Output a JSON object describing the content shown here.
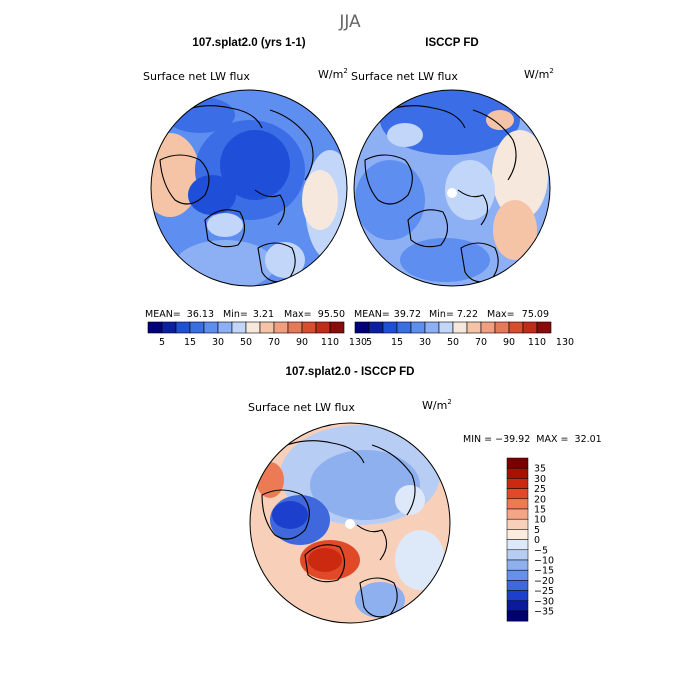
{
  "chart_data": {
    "type": "polar-contour-map",
    "title": "JJA",
    "panels": [
      {
        "id": "model",
        "title": "107.splat2.0 (yrs 1-1)",
        "field_label": "Surface net LW flux",
        "units_base": "W/m",
        "units_exp": "2",
        "stats": {
          "mean_label": "MEAN=",
          "mean": "36.13",
          "min_label": "Min=",
          "min": "3.21",
          "max_label": "Max=",
          "max": "95.50"
        },
        "colorbar_ticks": [
          "5",
          "15",
          "30",
          "50",
          "70",
          "90",
          "110",
          "130"
        ]
      },
      {
        "id": "obs",
        "title": "ISCCP FD",
        "field_label": "Surface net LW flux",
        "units_base": "W/m",
        "units_exp": "2",
        "stats": {
          "mean_label": "MEAN=",
          "mean": "39.72",
          "min_label": "Min=",
          "min": "7.22",
          "max_label": "Max=",
          "max": "75.09"
        },
        "colorbar_ticks": [
          "5",
          "15",
          "30",
          "50",
          "70",
          "90",
          "110",
          "130"
        ]
      },
      {
        "id": "diff",
        "title": "107.splat2.0 - ISCCP FD",
        "field_label": "Surface net LW flux",
        "units_base": "W/m",
        "units_exp": "2",
        "range_text": "MIN = −39.92  MAX =  32.01",
        "min": -39.92,
        "max": 32.01,
        "colorbar_levels": [
          "35",
          "30",
          "25",
          "20",
          "15",
          "10",
          "5",
          "0",
          "−5",
          "−10",
          "−15",
          "−20",
          "−25",
          "−30",
          "−35"
        ]
      }
    ],
    "abs_colors": [
      "#00007f",
      "#0a1fa6",
      "#1f4fd8",
      "#3a6de6",
      "#5e8ef0",
      "#8db0f5",
      "#c2d6fa",
      "#f6e8dc",
      "#f5c4a6",
      "#f0a080",
      "#e8785a",
      "#da4b30",
      "#c22a1a",
      "#8c0a0a"
    ],
    "diff_colors": [
      "#7a0000",
      "#a81000",
      "#cc2a10",
      "#e04a28",
      "#ec7a55",
      "#f3a586",
      "#f8cfb9",
      "#fbecde",
      "#dde8f8",
      "#b8cdf4",
      "#8fb0ef",
      "#6790e8",
      "#3e68dc",
      "#1d3fce",
      "#0a1a9a",
      "#00006e"
    ]
  }
}
